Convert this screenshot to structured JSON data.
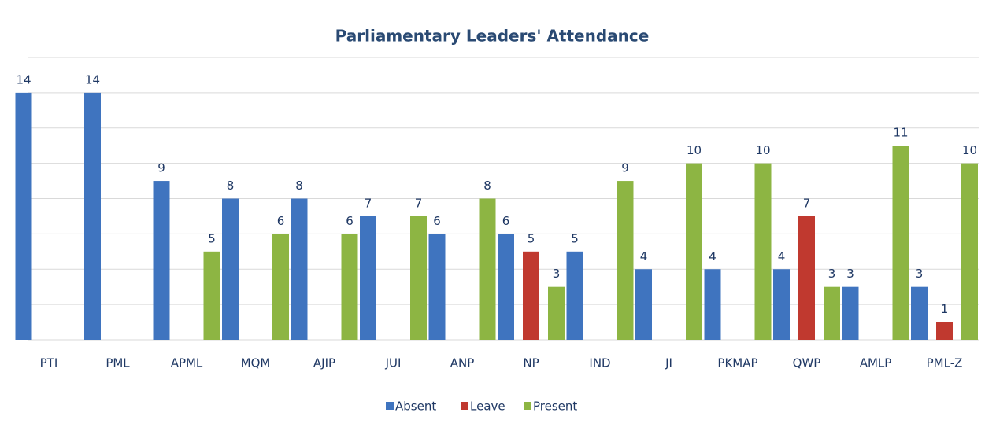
{
  "chart_data": {
    "type": "bar",
    "title": "Parliamentary Leaders' Attendance",
    "categories": [
      "PTI",
      "PML",
      "APML",
      "MQM",
      "AJIP",
      "JUI",
      "ANP",
      "NP",
      "IND",
      "JI",
      "PKMAP",
      "QWP",
      "AMLP",
      "PML-Z"
    ],
    "series": [
      {
        "name": "Absent",
        "color": "#3f74bf",
        "values": [
          14,
          14,
          9,
          8,
          8,
          7,
          6,
          6,
          5,
          4,
          4,
          4,
          3,
          3
        ]
      },
      {
        "name": "Leave",
        "color": "#c0392f",
        "values": [
          null,
          null,
          null,
          null,
          null,
          null,
          null,
          5,
          null,
          null,
          null,
          7,
          null,
          1
        ]
      },
      {
        "name": "Present",
        "color": "#8db543",
        "values": [
          null,
          null,
          5,
          6,
          6,
          7,
          8,
          3,
          9,
          10,
          10,
          3,
          11,
          10
        ]
      }
    ],
    "ylim": [
      0,
      16
    ],
    "yticks": [
      0,
      2,
      4,
      6,
      8,
      10,
      12,
      14,
      16
    ],
    "grid": true,
    "legend": "bottom"
  }
}
